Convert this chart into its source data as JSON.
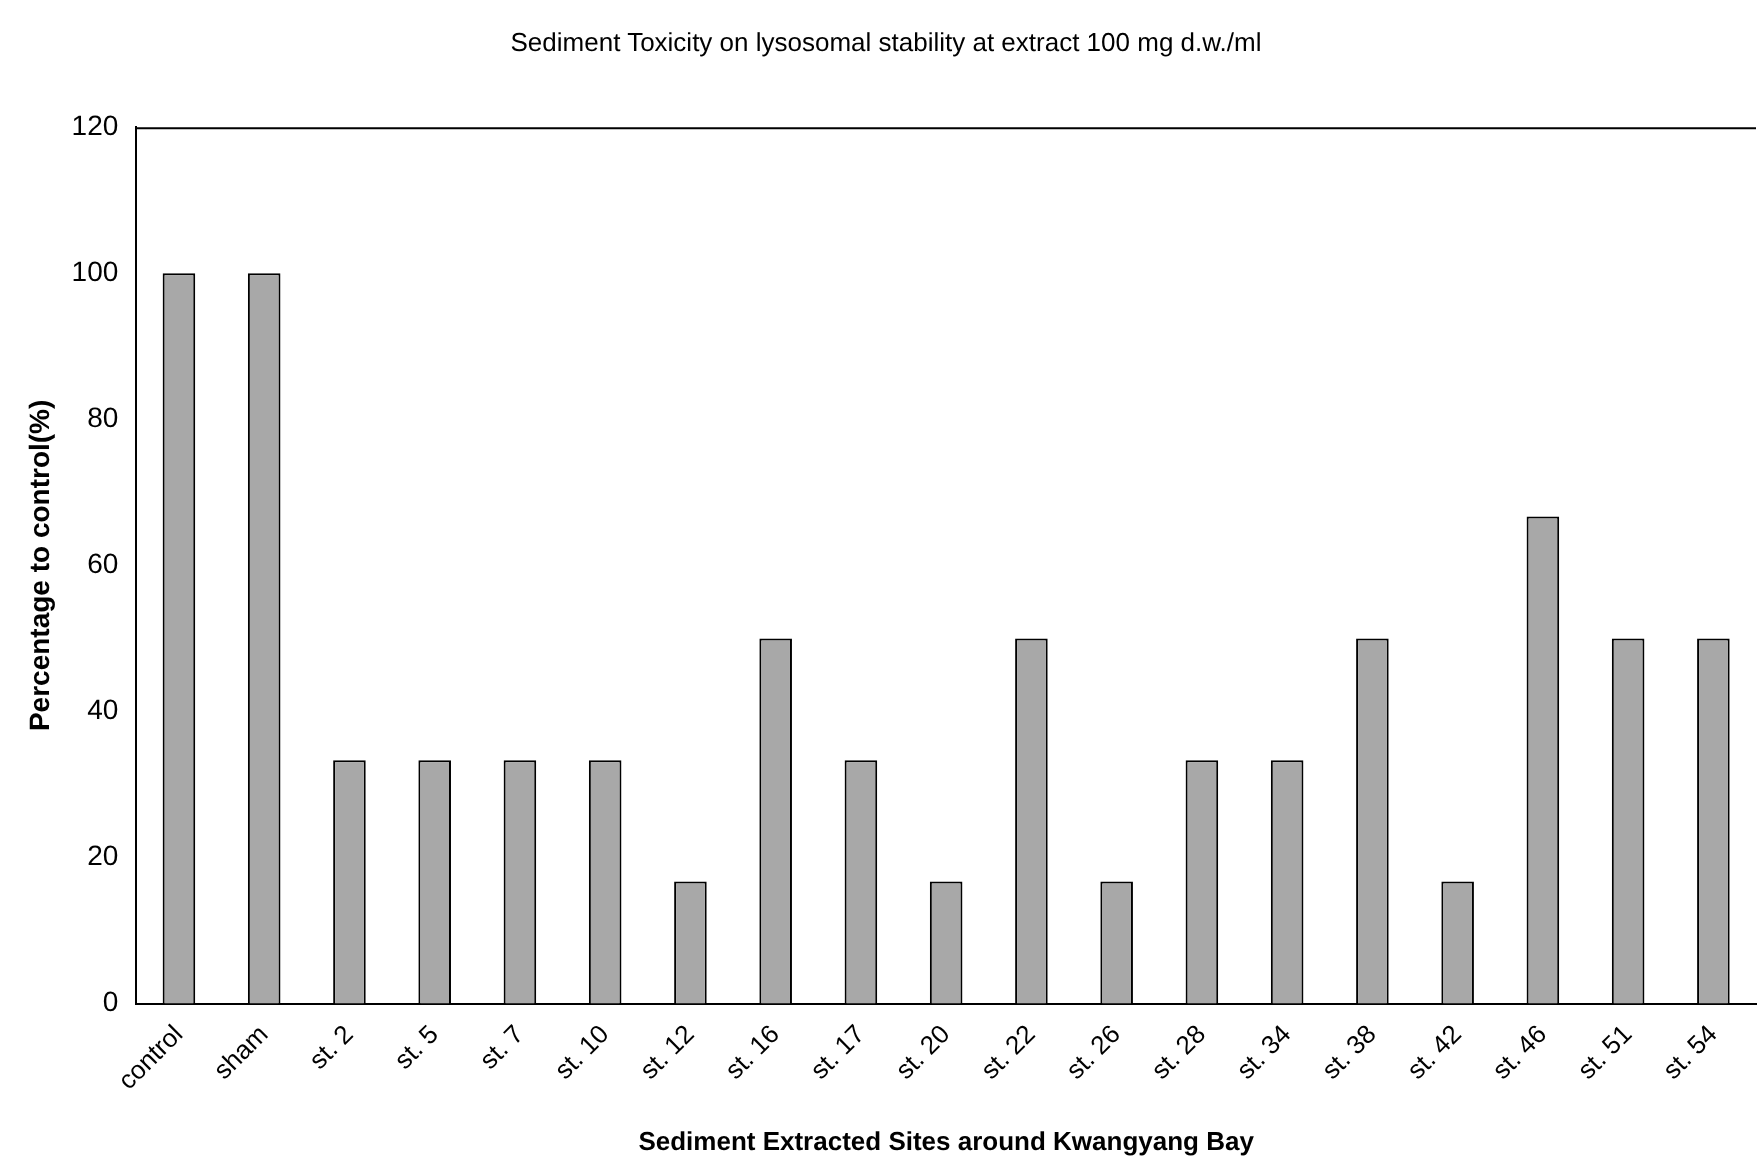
{
  "chart_data": {
    "type": "bar",
    "title": "Sediment Toxicity on lysosomal stability at extract 100 mg d.w./ml",
    "xlabel": "Sediment Extracted Sites around Kwangyang Bay",
    "ylabel": "Percentage to control(%)",
    "categories": [
      "control",
      "sham",
      "st. 2",
      "st. 5",
      "st. 7",
      "st. 10",
      "st. 12",
      "st. 16",
      "st. 17",
      "st. 20",
      "st. 22",
      "st. 26",
      "st. 28",
      "st. 34",
      "st. 38",
      "st. 42",
      "st. 46",
      "st. 51",
      "st. 54"
    ],
    "values": [
      100,
      100,
      33.3,
      33.3,
      33.3,
      33.3,
      16.7,
      50,
      33.3,
      16.7,
      50,
      16.7,
      33.3,
      33.3,
      50,
      16.7,
      66.7,
      50,
      50
    ],
    "color": "#a8a8a8",
    "ylim": [
      0,
      120
    ],
    "yticks": [
      0,
      20,
      40,
      60,
      80,
      100,
      120
    ],
    "grid": false,
    "legend": false
  }
}
